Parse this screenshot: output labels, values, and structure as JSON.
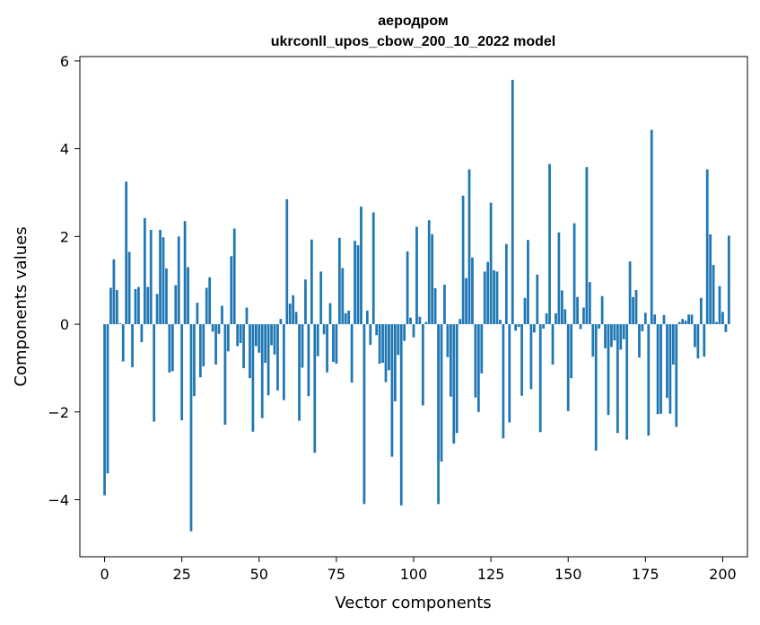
{
  "chart_data": {
    "type": "bar",
    "title": "аеродром",
    "subtitle": "ukrconll_upos_cbow_200_10_2022 model",
    "xlabel": "Vector components",
    "ylabel": "Components values",
    "xlim": [
      -8,
      208
    ],
    "ylim": [
      -5.3,
      6.1
    ],
    "xticks": [
      0,
      25,
      50,
      75,
      100,
      125,
      150,
      175,
      200
    ],
    "yticks": [
      -4,
      -2,
      0,
      2,
      4,
      6
    ],
    "ytick_labels": [
      "−4",
      "−2",
      "0",
      "2",
      "4",
      "6"
    ],
    "bar_color": "#1f77b4",
    "grid": false,
    "legend": "none",
    "values": [
      -3.9,
      -3.4,
      0.83,
      1.48,
      0.78,
      0.02,
      -0.85,
      3.25,
      1.65,
      -0.98,
      0.8,
      0.85,
      -0.41,
      2.42,
      0.85,
      2.15,
      -2.22,
      0.69,
      2.15,
      1.98,
      1.27,
      -1.1,
      -1.07,
      0.89,
      2.0,
      -2.19,
      2.35,
      1.3,
      -4.72,
      -1.64,
      0.49,
      -1.21,
      -0.96,
      0.83,
      1.07,
      -0.17,
      -0.92,
      -0.22,
      0.42,
      -2.29,
      -0.62,
      1.55,
      2.18,
      -0.5,
      -0.43,
      -1.0,
      0.38,
      -1.23,
      -2.45,
      -0.5,
      -0.65,
      -2.14,
      -0.88,
      -1.62,
      -0.48,
      -0.69,
      -1.51,
      0.12,
      -1.73,
      2.85,
      0.47,
      0.66,
      0.28,
      -2.2,
      -0.99,
      1.02,
      -1.64,
      1.93,
      -2.93,
      -0.73,
      1.2,
      -0.23,
      -1.1,
      0.48,
      -0.86,
      -0.9,
      1.97,
      1.28,
      0.25,
      0.31,
      -1.33,
      1.9,
      1.8,
      2.68,
      -4.1,
      0.31,
      -0.47,
      2.55,
      -0.25,
      -0.9,
      -0.88,
      -1.32,
      -1.05,
      -3.02,
      -1.76,
      -0.7,
      -4.13,
      -0.38,
      1.66,
      0.15,
      -0.3,
      2.22,
      0.17,
      -1.85,
      0.05,
      2.37,
      2.05,
      0.82,
      -4.1,
      -3.13,
      0.9,
      -0.75,
      -1.65,
      -2.72,
      -2.48,
      0.12,
      2.93,
      1.05,
      3.53,
      1.52,
      -1.67,
      -2.0,
      -1.12,
      1.2,
      1.42,
      2.77,
      1.23,
      1.2,
      0.1,
      -2.6,
      1.83,
      -2.24,
      5.57,
      -0.15,
      -0.06,
      -1.63,
      0.6,
      1.92,
      -1.48,
      -0.19,
      1.13,
      -2.46,
      -0.1,
      0.25,
      3.65,
      -0.92,
      0.25,
      2.09,
      0.77,
      0.34,
      -1.98,
      -1.23,
      2.3,
      0.62,
      -0.11,
      0.38,
      3.58,
      0.96,
      -0.74,
      -2.88,
      -0.1,
      0.64,
      -0.55,
      -2.07,
      -0.52,
      -0.37,
      -2.48,
      -0.58,
      -0.34,
      -2.63,
      1.43,
      0.62,
      0.78,
      -0.76,
      -0.16,
      0.26,
      -2.54,
      4.43,
      0.22,
      -2.05,
      -2.04,
      0.21,
      -1.68,
      -2.04,
      -0.92,
      -2.34,
      0.05,
      0.12,
      0.08,
      0.22,
      0.22,
      -0.52,
      -0.78,
      0.6,
      -0.74,
      3.53,
      2.05,
      1.35,
      0.05,
      0.87,
      0.28,
      -0.18,
      2.02
    ]
  }
}
